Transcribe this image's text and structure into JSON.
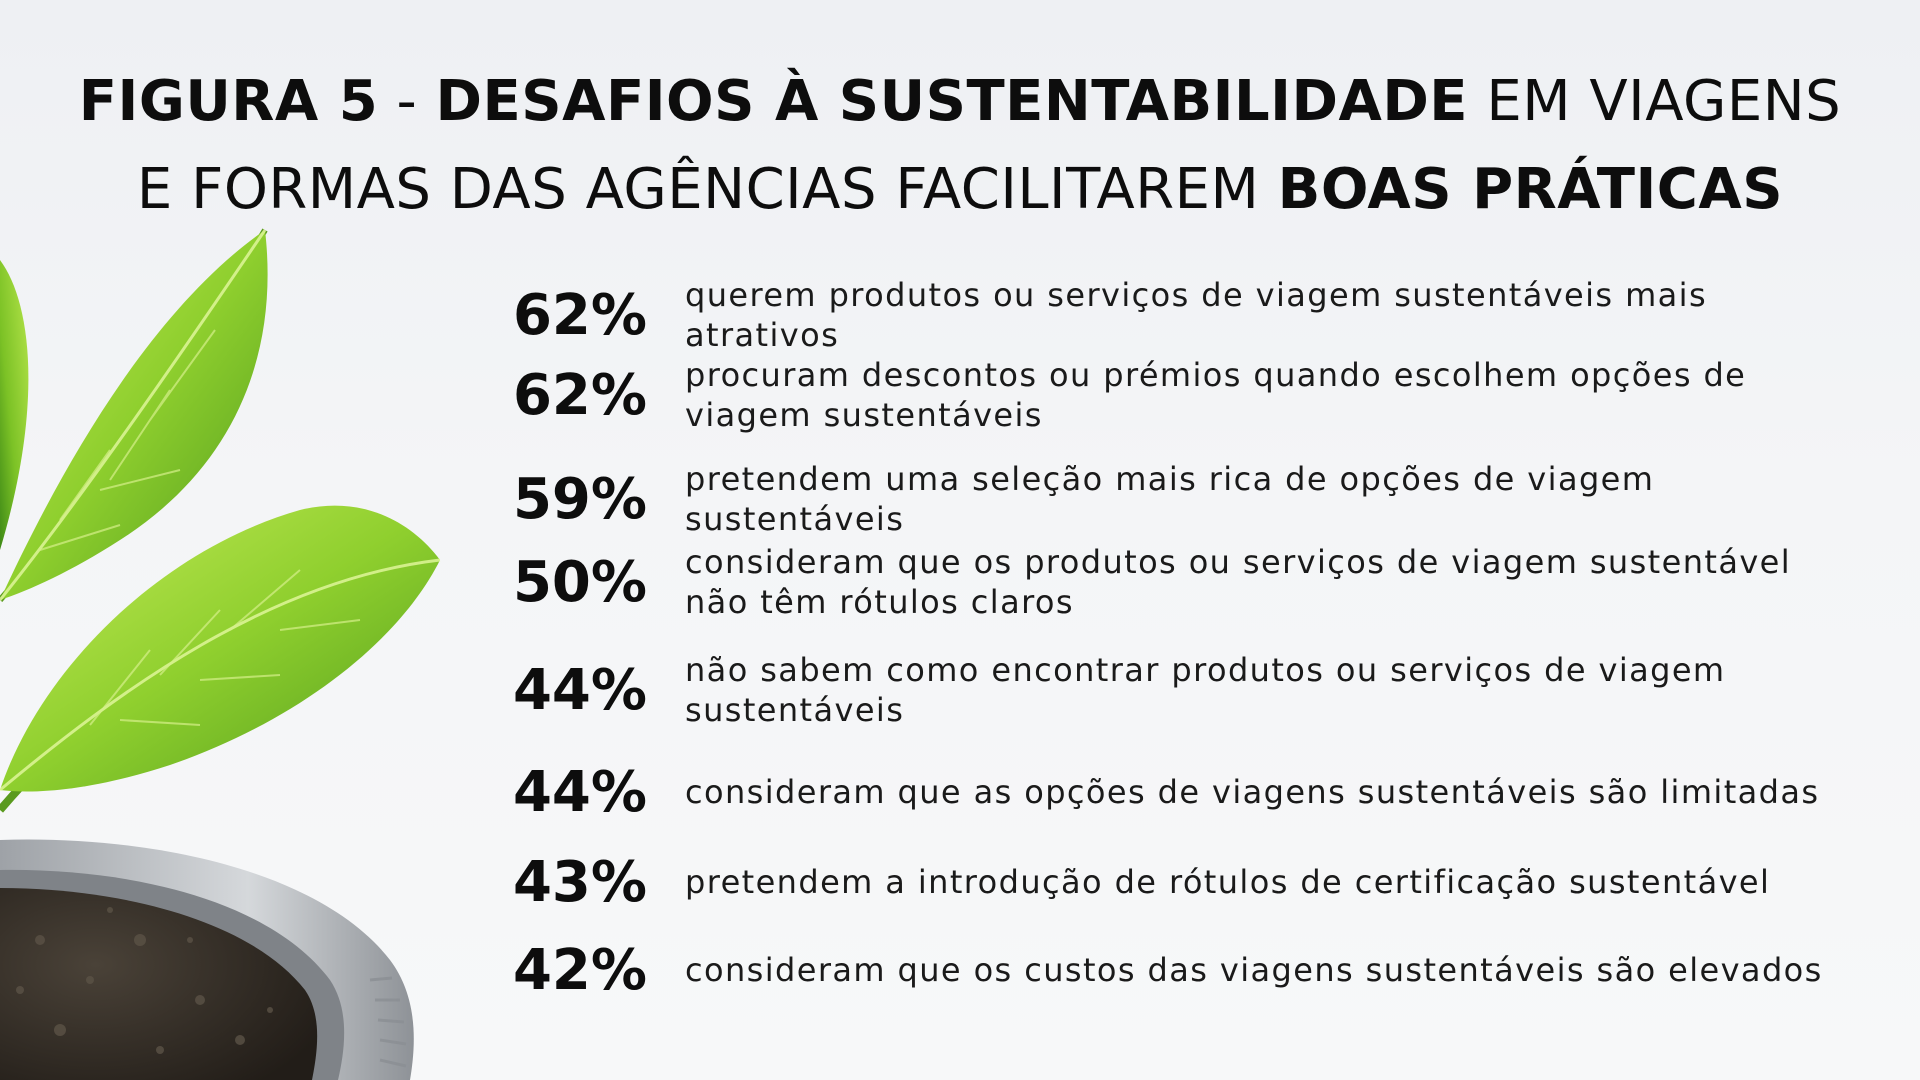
{
  "title": {
    "line1": [
      {
        "text": "FIGURA 5",
        "style": "bold"
      },
      {
        "text": " - ",
        "style": "regular"
      },
      {
        "text": "DESAFIOS À SUSTENTABILIDADE",
        "style": "bold"
      },
      {
        "text": " EM VIAGENS",
        "style": "regular"
      }
    ],
    "line2": [
      {
        "text": "E FORMAS DAS AGÊNCIAS FACILITAREM ",
        "style": "regular"
      },
      {
        "text": "BOAS PRÁTICAS",
        "style": "bold"
      }
    ]
  },
  "stats": [
    {
      "percent": "62%",
      "value": 62,
      "text": "querem produtos ou serviços de viagem sustentáveis mais atrativos"
    },
    {
      "percent": "62%",
      "value": 62,
      "text": "procuram descontos ou prémios quando escolhem opções de viagem sustentáveis"
    },
    {
      "percent": "59%",
      "value": 59,
      "text": "pretendem uma seleção mais rica de opções de viagem sustentáveis"
    },
    {
      "percent": "50%",
      "value": 50,
      "text": "consideram que os produtos ou serviços de viagem sustentável não têm rótulos claros"
    },
    {
      "percent": "44%",
      "value": 44,
      "text": "não sabem como encontrar produtos ou serviços de viagem sustentáveis"
    },
    {
      "percent": "44%",
      "value": 44,
      "text": "consideram que as opções de viagens sustentáveis são limitadas"
    },
    {
      "percent": "43%",
      "value": 43,
      "text": "pretendem a introdução de rótulos de certificação sustentável"
    },
    {
      "percent": "42%",
      "value": 42,
      "text": "consideram que os custos das viagens sustentáveis são elevados"
    }
  ],
  "colors": {
    "text": "#0d0d0d",
    "leaf_light": "#b6e24a",
    "leaf_dark": "#4f9a1c",
    "pot": "#b9bcc0",
    "soil": "#3a332c"
  }
}
